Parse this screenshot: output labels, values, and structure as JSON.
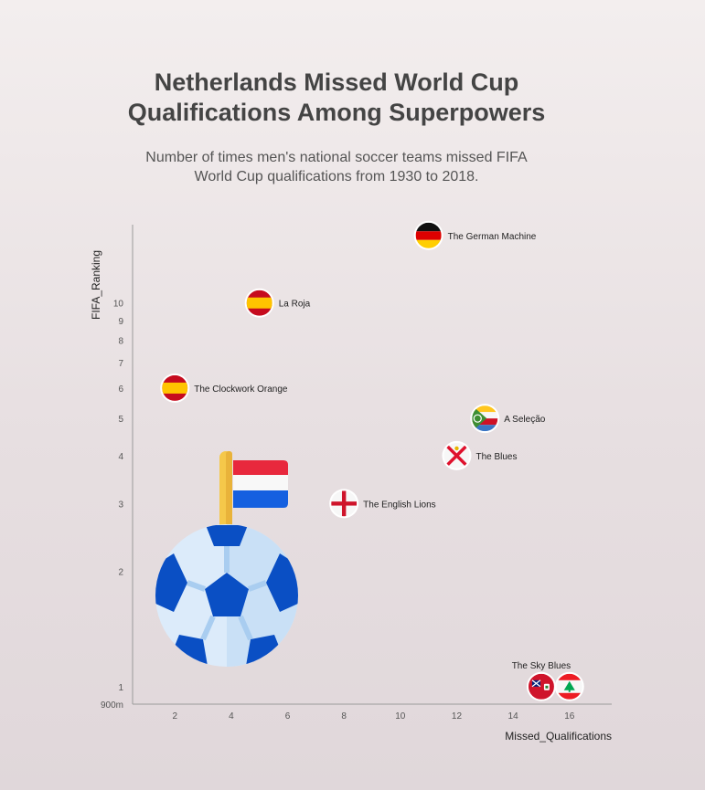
{
  "title": "Netherlands Missed World Cup Qualifications Among Superpowers",
  "subtitle": "Number of times men's national soccer teams missed FIFA World Cup qualifications from 1930 to 2018.",
  "chart_data": {
    "type": "scatter",
    "xlabel": "Missed_Qualifications",
    "ylabel": "FIFA_Ranking",
    "y_scale": "log",
    "xlim": [
      0.5,
      17.5
    ],
    "ylim": [
      0.9,
      16
    ],
    "x_ticks": [
      "2",
      "4",
      "6",
      "8",
      "10",
      "12",
      "14",
      "16"
    ],
    "y_ticks": [
      {
        "value": 0.9,
        "label": "900m"
      },
      {
        "value": 1,
        "label": "1"
      },
      {
        "value": 2,
        "label": "2"
      },
      {
        "value": 3,
        "label": "3"
      },
      {
        "value": 4,
        "label": "4"
      },
      {
        "value": 5,
        "label": "5"
      },
      {
        "value": 6,
        "label": "6"
      },
      {
        "value": 7,
        "label": "7"
      },
      {
        "value": 8,
        "label": "8"
      },
      {
        "value": 9,
        "label": "9"
      },
      {
        "value": 10,
        "label": "10"
      }
    ],
    "grid": false,
    "points": [
      {
        "label": "The German Machine",
        "x": 11,
        "y": 15,
        "flag": "germany-flag-icon",
        "label_pos": "right"
      },
      {
        "label": "La Roja",
        "x": 5,
        "y": 10,
        "flag": "spain-flag-icon",
        "label_pos": "right"
      },
      {
        "label": "The Clockwork Orange",
        "x": 2,
        "y": 6,
        "flag": "spain-flag-icon",
        "label_pos": "right"
      },
      {
        "label": "A Seleção",
        "x": 13,
        "y": 5,
        "flag": "comoros-flag-icon",
        "label_pos": "right"
      },
      {
        "label": "The Blues",
        "x": 12,
        "y": 4,
        "flag": "jersey-flag-icon",
        "label_pos": "right"
      },
      {
        "label": "The English Lions",
        "x": 8,
        "y": 3,
        "flag": "england-flag-icon",
        "label_pos": "right"
      },
      {
        "label": "The Sky Blues",
        "x": 15,
        "y": 1,
        "flag": "bermuda-flag-icon",
        "label_pos": "above"
      },
      {
        "label": "",
        "x": 16,
        "y": 1,
        "flag": "lebanon-flag-icon",
        "label_pos": "none"
      }
    ],
    "decorations": {
      "ball": "soccer-ball-icon",
      "flag": "netherlands-flag-icon"
    },
    "colors": {
      "axis": "#9a9a9a",
      "ball_dark": "#0a4fc4",
      "ball_light": "#dcebfa",
      "nl_red": "#e8283d",
      "nl_blue": "#1560e0",
      "pole": "#f5c84a"
    }
  }
}
